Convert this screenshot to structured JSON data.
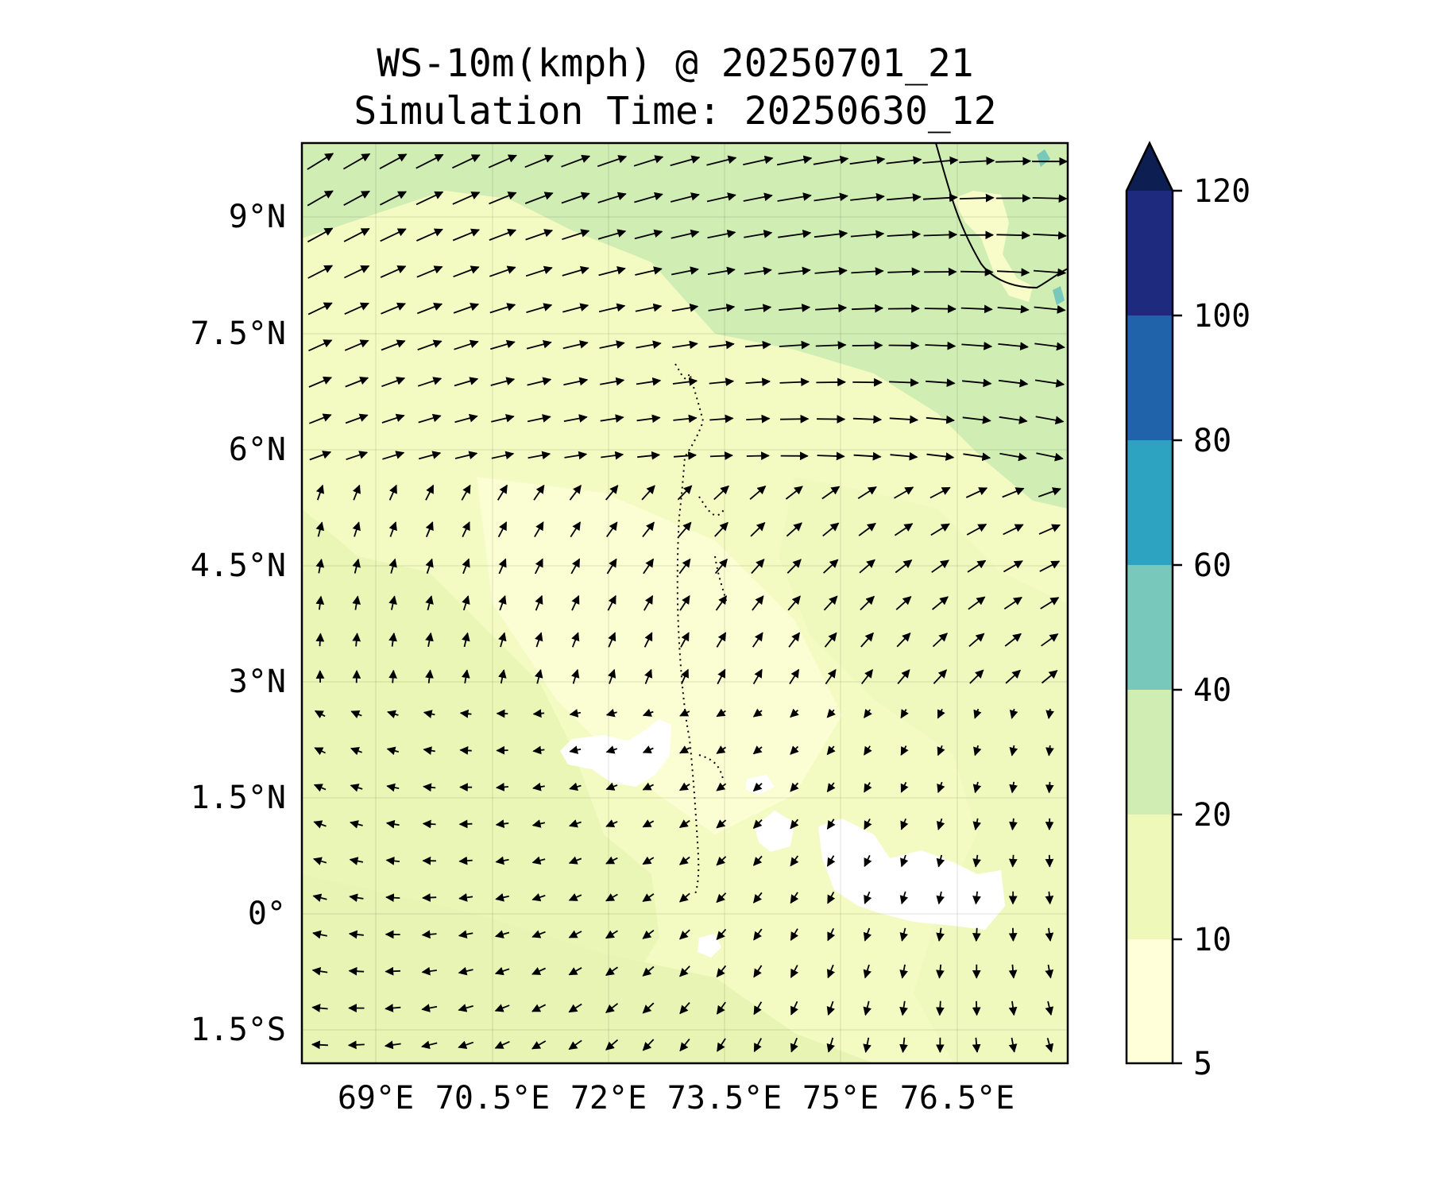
{
  "title": {
    "line1": "WS-10m(kmph) @ 20250701_21",
    "line2": "Simulation Time: 20250630_12"
  },
  "map": {
    "lat_ticks": [
      "9°N",
      "7.5°N",
      "6°N",
      "4.5°N",
      "3°N",
      "1.5°N",
      "0°",
      "1.5°S"
    ],
    "lon_ticks": [
      "69°E",
      "70.5°E",
      "72°E",
      "73.5°E",
      "75°E",
      "76.5°E"
    ],
    "lat_values": [
      9,
      7.5,
      6,
      4.5,
      3,
      1.5,
      0,
      -1.5
    ],
    "lon_values": [
      69,
      70.5,
      72,
      73.5,
      75,
      76.5
    ],
    "lat_range": [
      -1.95,
      9.9
    ],
    "lon_range": [
      68.05,
      77.9
    ],
    "field": "WS-10m",
    "units": "kmph"
  },
  "colorbar": {
    "levels": [
      5,
      10,
      20,
      40,
      60,
      80,
      100,
      120
    ],
    "labels": [
      "5",
      "10",
      "20",
      "40",
      "60",
      "80",
      "100",
      "120"
    ],
    "colors": [
      "#ffffd9",
      "#eef8b9",
      "#d0edb4",
      "#79c8bc",
      "#2ea2c1",
      "#2163aa",
      "#1e2a7d"
    ],
    "extend_color": "#0c1e52",
    "extend": "max"
  },
  "palette": {
    "white": "#ffffff",
    "lightest": "#f7fcc8",
    "light": "#eef8b9",
    "mid": "#d0edb4",
    "teal": "#79c8bc"
  }
}
